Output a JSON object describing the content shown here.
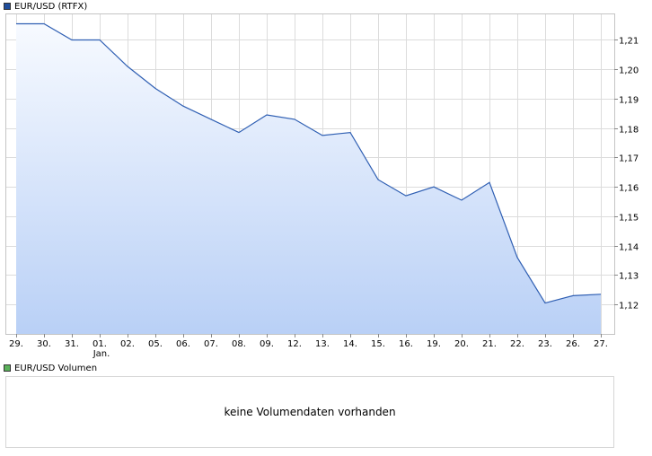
{
  "legend": {
    "price_label": "EUR/USD (RTFX)",
    "price_color": "#1f4e9c",
    "volume_label": "EUR/USD Volumen",
    "volume_color": "#5ab15a"
  },
  "volume_panel": {
    "message": "keine Volumendaten vorhanden"
  },
  "chart_data": {
    "type": "area",
    "categories": [
      "29.",
      "30.",
      "31.",
      "01.",
      "02.",
      "05.",
      "06.",
      "07.",
      "08.",
      "09.",
      "12.",
      "13.",
      "14.",
      "15.",
      "16.",
      "19.",
      "20.",
      "21.",
      "22.",
      "23.",
      "26.",
      "27."
    ],
    "month_labels": [
      {
        "category": "01.",
        "text": "Jan."
      }
    ],
    "series": [
      {
        "values": [
          1.2155,
          1.2155,
          1.21,
          1.21,
          1.201,
          1.1935,
          1.1875,
          1.183,
          1.1785,
          1.1845,
          1.183,
          1.1775,
          1.1785,
          1.1625,
          1.157,
          1.16,
          1.1555,
          1.1615,
          1.136,
          1.1205,
          1.123,
          1.1235
        ],
        "color": "#2f5fb3"
      }
    ],
    "y_ticks": [
      "1,12",
      "1,13",
      "1,14",
      "1,15",
      "1,16",
      "1,17",
      "1,18",
      "1,19",
      "1,20",
      "1,21"
    ],
    "ylim": [
      1.11,
      1.219
    ],
    "grid": true,
    "legend_position": "top-left"
  }
}
